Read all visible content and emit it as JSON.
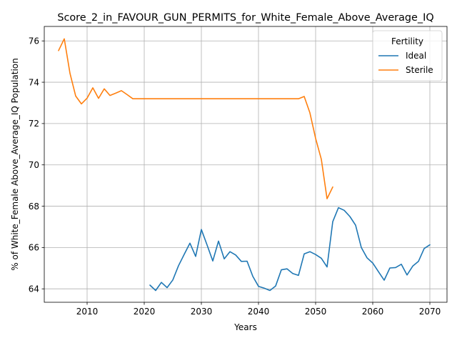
{
  "chart_data": {
    "type": "line",
    "title": "Score_2_in_FAVOUR_GUN_PERMITS_for_White_Female_Above_Average_IQ",
    "xlabel": "Years",
    "ylabel": "% of White_Female Above_Average_IQ Population",
    "xlim": [
      2002.5,
      2073.0
    ],
    "ylim": [
      63.35,
      76.7
    ],
    "xticks": [
      2010,
      2020,
      2030,
      2040,
      2050,
      2060,
      2070
    ],
    "yticks": [
      64,
      66,
      68,
      70,
      72,
      74,
      76
    ],
    "grid": true,
    "legend": {
      "title": "Fertility",
      "placement": "top-right"
    },
    "series": [
      {
        "name": "Ideal",
        "color": "#1f77b4",
        "x": [
          2021,
          2022,
          2023,
          2024,
          2025,
          2026,
          2027,
          2028,
          2029,
          2030,
          2031,
          2032,
          2033,
          2034,
          2035,
          2036,
          2037,
          2038,
          2039,
          2040,
          2041,
          2042,
          2043,
          2044,
          2045,
          2046,
          2047,
          2048,
          2049,
          2050,
          2051,
          2052,
          2053,
          2054,
          2055,
          2056,
          2057,
          2058,
          2059,
          2060,
          2061,
          2062,
          2063,
          2064,
          2065,
          2066,
          2067,
          2068,
          2069,
          2070
        ],
        "y": [
          64.18,
          63.92,
          64.31,
          64.06,
          64.43,
          65.12,
          65.67,
          66.21,
          65.57,
          66.87,
          66.12,
          65.35,
          66.31,
          65.45,
          65.8,
          65.64,
          65.33,
          65.34,
          64.61,
          64.12,
          64.03,
          63.92,
          64.14,
          64.92,
          64.97,
          64.74,
          64.65,
          65.69,
          65.8,
          65.66,
          65.48,
          65.06,
          67.25,
          67.93,
          67.8,
          67.5,
          67.08,
          66.0,
          65.5,
          65.25,
          64.83,
          64.42,
          65.01,
          65.03,
          65.19,
          64.67,
          65.1,
          65.33,
          65.95,
          66.13
        ]
      },
      {
        "name": "Sterile",
        "color": "#ff7f0e",
        "x": [
          2005,
          2006,
          2007,
          2008,
          2009,
          2010,
          2011,
          2012,
          2013,
          2014,
          2015,
          2016,
          2017,
          2018,
          2019,
          2020,
          2025,
          2030,
          2035,
          2040,
          2045,
          2046,
          2047,
          2048,
          2049,
          2050,
          2051,
          2052,
          2053
        ],
        "y": [
          75.53,
          76.1,
          74.43,
          73.33,
          72.95,
          73.23,
          73.73,
          73.22,
          73.68,
          73.36,
          73.47,
          73.59,
          73.4,
          73.2,
          73.2,
          73.2,
          73.2,
          73.2,
          73.2,
          73.2,
          73.2,
          73.2,
          73.2,
          73.31,
          72.52,
          71.28,
          70.27,
          68.36,
          68.93
        ]
      }
    ]
  }
}
